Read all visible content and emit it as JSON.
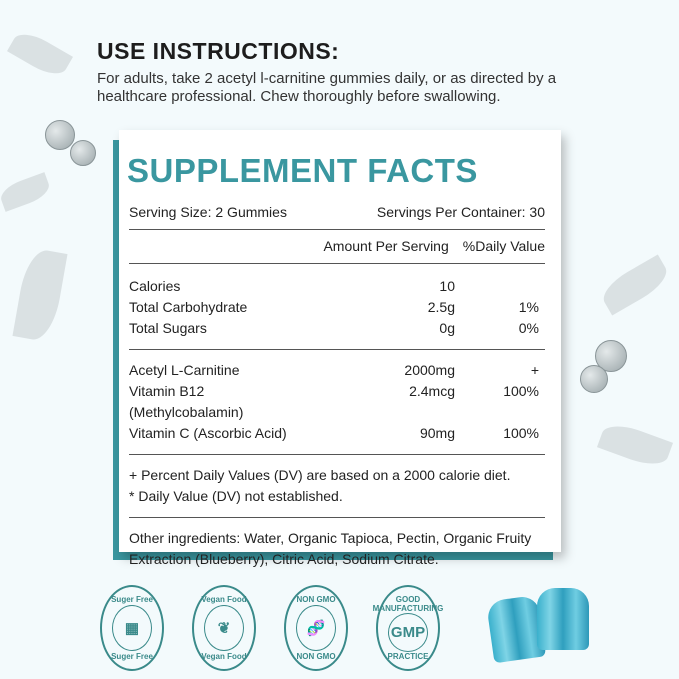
{
  "use": {
    "heading": "USE INSTRUCTIONS:",
    "text": "For adults, take 2 acetyl l-carnitine gummies daily, or as directed by a healthcare professional. Chew thoroughly before swallowing."
  },
  "facts": {
    "title": "SUPPLEMENT FACTS",
    "serving_size": "Serving Size: 2 Gummies",
    "servings_per_container": "Servings Per Container: 30",
    "col_amount": "Amount Per Serving",
    "col_dv": "%Daily Value",
    "group1": [
      {
        "name": "Calories",
        "amount": "10",
        "dv": ""
      },
      {
        "name": "Total Carbohydrate",
        "amount": "2.5g",
        "dv": "1%"
      },
      {
        "name": "Total Sugars",
        "amount": "0g",
        "dv": "0%"
      }
    ],
    "group2": [
      {
        "name": "Acetyl L-Carnitine",
        "amount": "2000mg",
        "dv": "+"
      },
      {
        "name": "Vitamin B12 (Methylcobalamin)",
        "amount": "2.4mcg",
        "dv": "100%"
      },
      {
        "name": "Vitamin C (Ascorbic Acid)",
        "amount": "90mg",
        "dv": "100%"
      }
    ],
    "note1": "+ Percent Daily Values (DV) are based on a 2000 calorie diet.",
    "note2": "* Daily Value (DV) not established.",
    "ingredients_label": "Other ingredients:",
    "ingredients": " Water, Organic Tapioca, Pectin, Organic Fruity Extraction (Blueberry), Citric Acid, Sodium Citrate."
  },
  "badges": [
    {
      "top": "Suger Free",
      "icon": "sugar-cubes-icon",
      "glyph": "▦",
      "bottom": "Suger Free"
    },
    {
      "top": "Vegan Food",
      "icon": "hand-leaf-icon",
      "glyph": "❦",
      "bottom": "Vegan Food"
    },
    {
      "top": "NON GMO",
      "icon": "dna-icon",
      "glyph": "🧬",
      "bottom": "NON GMO"
    },
    {
      "top": "GOOD MANUFACTURING",
      "icon": "gmp-icon",
      "glyph": "GMP",
      "bottom": "PRACTICE"
    }
  ],
  "colors": {
    "accent": "#3a97a0",
    "badge": "#3a8a8a",
    "gummy": "#3ab0cc"
  }
}
